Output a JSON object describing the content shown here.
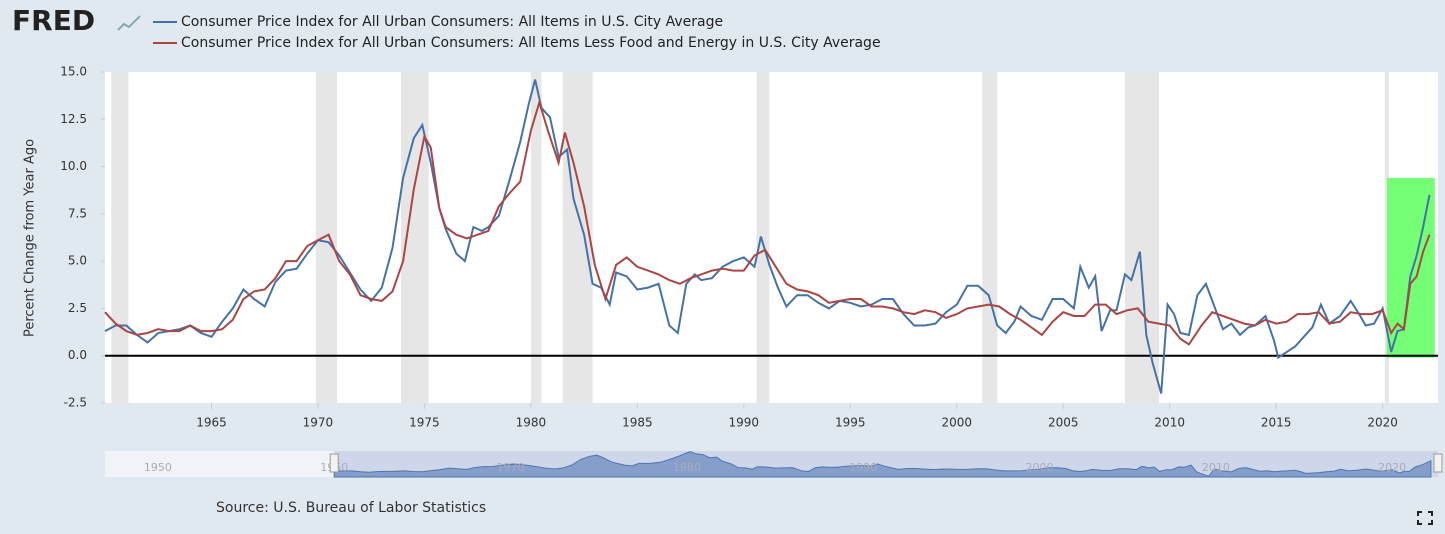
{
  "logo": "FRED",
  "chart_data": {
    "type": "line",
    "y_label": "Percent Change from Year Ago",
    "source": "Source: U.S. Bureau of Labor Statistics",
    "xlim": [
      1960,
      2022.6
    ],
    "ylim": [
      -2.5,
      15
    ],
    "xticks": [
      1965,
      1970,
      1975,
      1980,
      1985,
      1990,
      1995,
      2000,
      2005,
      2010,
      2015,
      2020
    ],
    "yticks": [
      -2.5,
      {
        "value": 0,
        "label": "0.0"
      },
      2.5,
      {
        "value": 5,
        "label": "5.0"
      },
      7.5,
      {
        "value": 10,
        "label": "10.0"
      },
      12.5,
      {
        "value": 15,
        "label": "15.0"
      }
    ],
    "recessions": [
      [
        1960.3,
        1961.1
      ],
      [
        1969.9,
        1970.9
      ],
      [
        1973.9,
        1975.2
      ],
      [
        1980.0,
        1980.5
      ],
      [
        1981.5,
        1982.9
      ],
      [
        1990.6,
        1991.2
      ],
      [
        2001.2,
        2001.9
      ],
      [
        2007.9,
        2009.5
      ],
      [
        2020.1,
        2020.3
      ]
    ],
    "recession_color": "#e6e6e6",
    "zero_line": true,
    "highlight": {
      "x": [
        2020.2,
        2022.45
      ],
      "y": [
        -0.1,
        9.4
      ],
      "color": "#66ff66"
    },
    "series": [
      {
        "name": "Consumer Price Index for All Urban Consumers: All Items in U.S. City Average",
        "color": "#4572a7",
        "x": [
          1960.0,
          1960.5,
          1961.0,
          1961.5,
          1962.0,
          1962.5,
          1963.0,
          1963.5,
          1964.0,
          1964.5,
          1965.0,
          1965.5,
          1966.0,
          1966.5,
          1967.0,
          1967.5,
          1968.0,
          1968.5,
          1969.0,
          1969.5,
          1970.0,
          1970.5,
          1971.0,
          1971.5,
          1972.0,
          1972.5,
          1973.0,
          1973.5,
          1974.0,
          1974.5,
          1974.9,
          1975.3,
          1975.7,
          1976.0,
          1976.5,
          1976.9,
          1977.3,
          1977.7,
          1978.0,
          1978.5,
          1979.0,
          1979.5,
          1979.9,
          1980.2,
          1980.5,
          1980.9,
          1981.3,
          1981.7,
          1982.0,
          1982.5,
          1982.9,
          1983.3,
          1983.7,
          1984.0,
          1984.5,
          1985.0,
          1985.5,
          1986.0,
          1986.5,
          1986.9,
          1987.3,
          1987.7,
          1988.0,
          1988.5,
          1989.0,
          1989.5,
          1990.0,
          1990.5,
          1990.8,
          1991.2,
          1991.6,
          1992.0,
          1992.5,
          1993.0,
          1993.5,
          1994.0,
          1994.5,
          1995.0,
          1995.5,
          1996.0,
          1996.5,
          1997.0,
          1997.5,
          1998.0,
          1998.5,
          1999.0,
          1999.5,
          2000.0,
          2000.5,
          2001.0,
          2001.5,
          2001.9,
          2002.3,
          2002.7,
          2003.0,
          2003.5,
          2004.0,
          2004.5,
          2005.0,
          2005.5,
          2005.8,
          2006.2,
          2006.5,
          2006.8,
          2007.2,
          2007.5,
          2007.9,
          2008.2,
          2008.6,
          2008.9,
          2009.2,
          2009.6,
          2009.9,
          2010.2,
          2010.5,
          2010.9,
          2011.3,
          2011.7,
          2012.0,
          2012.5,
          2012.9,
          2013.3,
          2013.7,
          2014.0,
          2014.5,
          2014.9,
          2015.1,
          2015.5,
          2015.9,
          2016.3,
          2016.7,
          2017.1,
          2017.5,
          2018.0,
          2018.5,
          2018.9,
          2019.2,
          2019.6,
          2020.0,
          2020.4,
          2020.7,
          2021.0,
          2021.3,
          2021.6,
          2021.9,
          2022.2
        ],
        "values": [
          1.3,
          1.6,
          1.6,
          1.1,
          0.7,
          1.2,
          1.3,
          1.4,
          1.6,
          1.2,
          1.0,
          1.8,
          2.5,
          3.5,
          3.0,
          2.6,
          3.9,
          4.5,
          4.6,
          5.4,
          6.1,
          6.0,
          5.3,
          4.4,
          3.5,
          2.9,
          3.6,
          5.7,
          9.4,
          11.5,
          12.2,
          10.2,
          7.8,
          6.7,
          5.4,
          5.0,
          6.8,
          6.6,
          6.8,
          7.4,
          9.3,
          11.3,
          13.3,
          14.6,
          13.1,
          12.6,
          10.5,
          10.9,
          8.3,
          6.4,
          3.8,
          3.6,
          2.7,
          4.4,
          4.2,
          3.5,
          3.6,
          3.8,
          1.6,
          1.2,
          3.8,
          4.3,
          4.0,
          4.1,
          4.7,
          5.0,
          5.2,
          4.7,
          6.3,
          4.8,
          3.6,
          2.6,
          3.2,
          3.2,
          2.8,
          2.5,
          2.9,
          2.8,
          2.6,
          2.7,
          3.0,
          3.0,
          2.2,
          1.6,
          1.6,
          1.7,
          2.3,
          2.7,
          3.7,
          3.7,
          3.2,
          1.6,
          1.2,
          1.8,
          2.6,
          2.1,
          1.9,
          3.0,
          3.0,
          2.5,
          4.7,
          3.6,
          4.2,
          1.3,
          2.4,
          2.4,
          4.3,
          4.0,
          5.5,
          1.1,
          -0.4,
          -2.0,
          2.7,
          2.2,
          1.2,
          1.1,
          3.2,
          3.8,
          2.9,
          1.4,
          1.7,
          1.1,
          1.5,
          1.6,
          2.1,
          0.8,
          -0.1,
          0.2,
          0.5,
          1.0,
          1.5,
          2.7,
          1.7,
          2.1,
          2.9,
          2.2,
          1.6,
          1.7,
          2.5,
          0.2,
          1.3,
          1.4,
          4.2,
          5.3,
          6.8,
          8.5
        ]
      },
      {
        "name": "Consumer Price Index for All Urban Consumers: All Items Less Food and Energy in U.S. City Average",
        "color": "#aa4643",
        "x": [
          1960.0,
          1960.5,
          1961.0,
          1961.5,
          1962.0,
          1962.5,
          1963.0,
          1963.5,
          1964.0,
          1964.5,
          1965.0,
          1965.5,
          1966.0,
          1966.5,
          1967.0,
          1967.5,
          1968.0,
          1968.5,
          1969.0,
          1969.5,
          1970.0,
          1970.5,
          1971.0,
          1971.5,
          1972.0,
          1972.5,
          1973.0,
          1973.5,
          1974.0,
          1974.5,
          1975.0,
          1975.3,
          1975.7,
          1976.0,
          1976.5,
          1977.0,
          1977.5,
          1978.0,
          1978.5,
          1979.0,
          1979.5,
          1980.0,
          1980.4,
          1980.8,
          1981.3,
          1981.6,
          1982.0,
          1982.5,
          1983.0,
          1983.5,
          1984.0,
          1984.5,
          1985.0,
          1985.5,
          1986.0,
          1986.5,
          1987.0,
          1987.5,
          1988.0,
          1988.5,
          1989.0,
          1989.5,
          1990.0,
          1990.5,
          1991.0,
          1991.5,
          1992.0,
          1992.5,
          1993.0,
          1993.5,
          1994.0,
          1994.5,
          1995.0,
          1995.5,
          1996.0,
          1996.5,
          1997.0,
          1997.5,
          1998.0,
          1998.5,
          1999.0,
          1999.5,
          2000.0,
          2000.5,
          2001.0,
          2001.5,
          2002.0,
          2002.5,
          2003.0,
          2003.5,
          2004.0,
          2004.5,
          2005.0,
          2005.5,
          2006.0,
          2006.5,
          2007.0,
          2007.5,
          2008.0,
          2008.5,
          2009.0,
          2009.5,
          2010.0,
          2010.5,
          2010.9,
          2011.5,
          2012.0,
          2012.5,
          2013.0,
          2013.5,
          2014.0,
          2014.5,
          2015.0,
          2015.5,
          2016.0,
          2016.5,
          2017.0,
          2017.5,
          2018.0,
          2018.5,
          2019.0,
          2019.5,
          2020.0,
          2020.4,
          2020.7,
          2021.0,
          2021.3,
          2021.6,
          2021.9,
          2022.2
        ],
        "values": [
          2.3,
          1.7,
          1.3,
          1.1,
          1.2,
          1.4,
          1.3,
          1.3,
          1.6,
          1.3,
          1.3,
          1.4,
          1.9,
          3.0,
          3.4,
          3.5,
          4.1,
          5.0,
          5.0,
          5.8,
          6.1,
          6.4,
          5.0,
          4.3,
          3.2,
          3.0,
          2.9,
          3.4,
          5.0,
          8.8,
          11.6,
          11.0,
          7.8,
          6.8,
          6.4,
          6.2,
          6.4,
          6.6,
          7.9,
          8.6,
          9.2,
          11.9,
          13.4,
          11.9,
          10.2,
          11.8,
          10.2,
          7.9,
          4.8,
          3.0,
          4.8,
          5.2,
          4.7,
          4.5,
          4.3,
          4.0,
          3.8,
          4.1,
          4.3,
          4.5,
          4.6,
          4.5,
          4.5,
          5.3,
          5.6,
          4.7,
          3.8,
          3.5,
          3.4,
          3.2,
          2.8,
          2.9,
          3.0,
          3.0,
          2.6,
          2.6,
          2.5,
          2.3,
          2.2,
          2.4,
          2.3,
          2.0,
          2.2,
          2.5,
          2.6,
          2.7,
          2.6,
          2.2,
          1.9,
          1.5,
          1.1,
          1.8,
          2.3,
          2.1,
          2.1,
          2.7,
          2.7,
          2.2,
          2.4,
          2.5,
          1.8,
          1.7,
          1.6,
          0.9,
          0.6,
          1.6,
          2.3,
          2.1,
          1.9,
          1.7,
          1.6,
          1.9,
          1.7,
          1.8,
          2.2,
          2.2,
          2.3,
          1.7,
          1.8,
          2.3,
          2.2,
          2.2,
          2.4,
          1.2,
          1.7,
          1.4,
          3.8,
          4.2,
          5.5,
          6.4
        ]
      }
    ],
    "navigator": {
      "xlim": [
        1947,
        2022.6
      ],
      "xticks": [
        1950,
        1960,
        1970,
        1980,
        1990,
        2000,
        2010,
        2020
      ]
    }
  }
}
